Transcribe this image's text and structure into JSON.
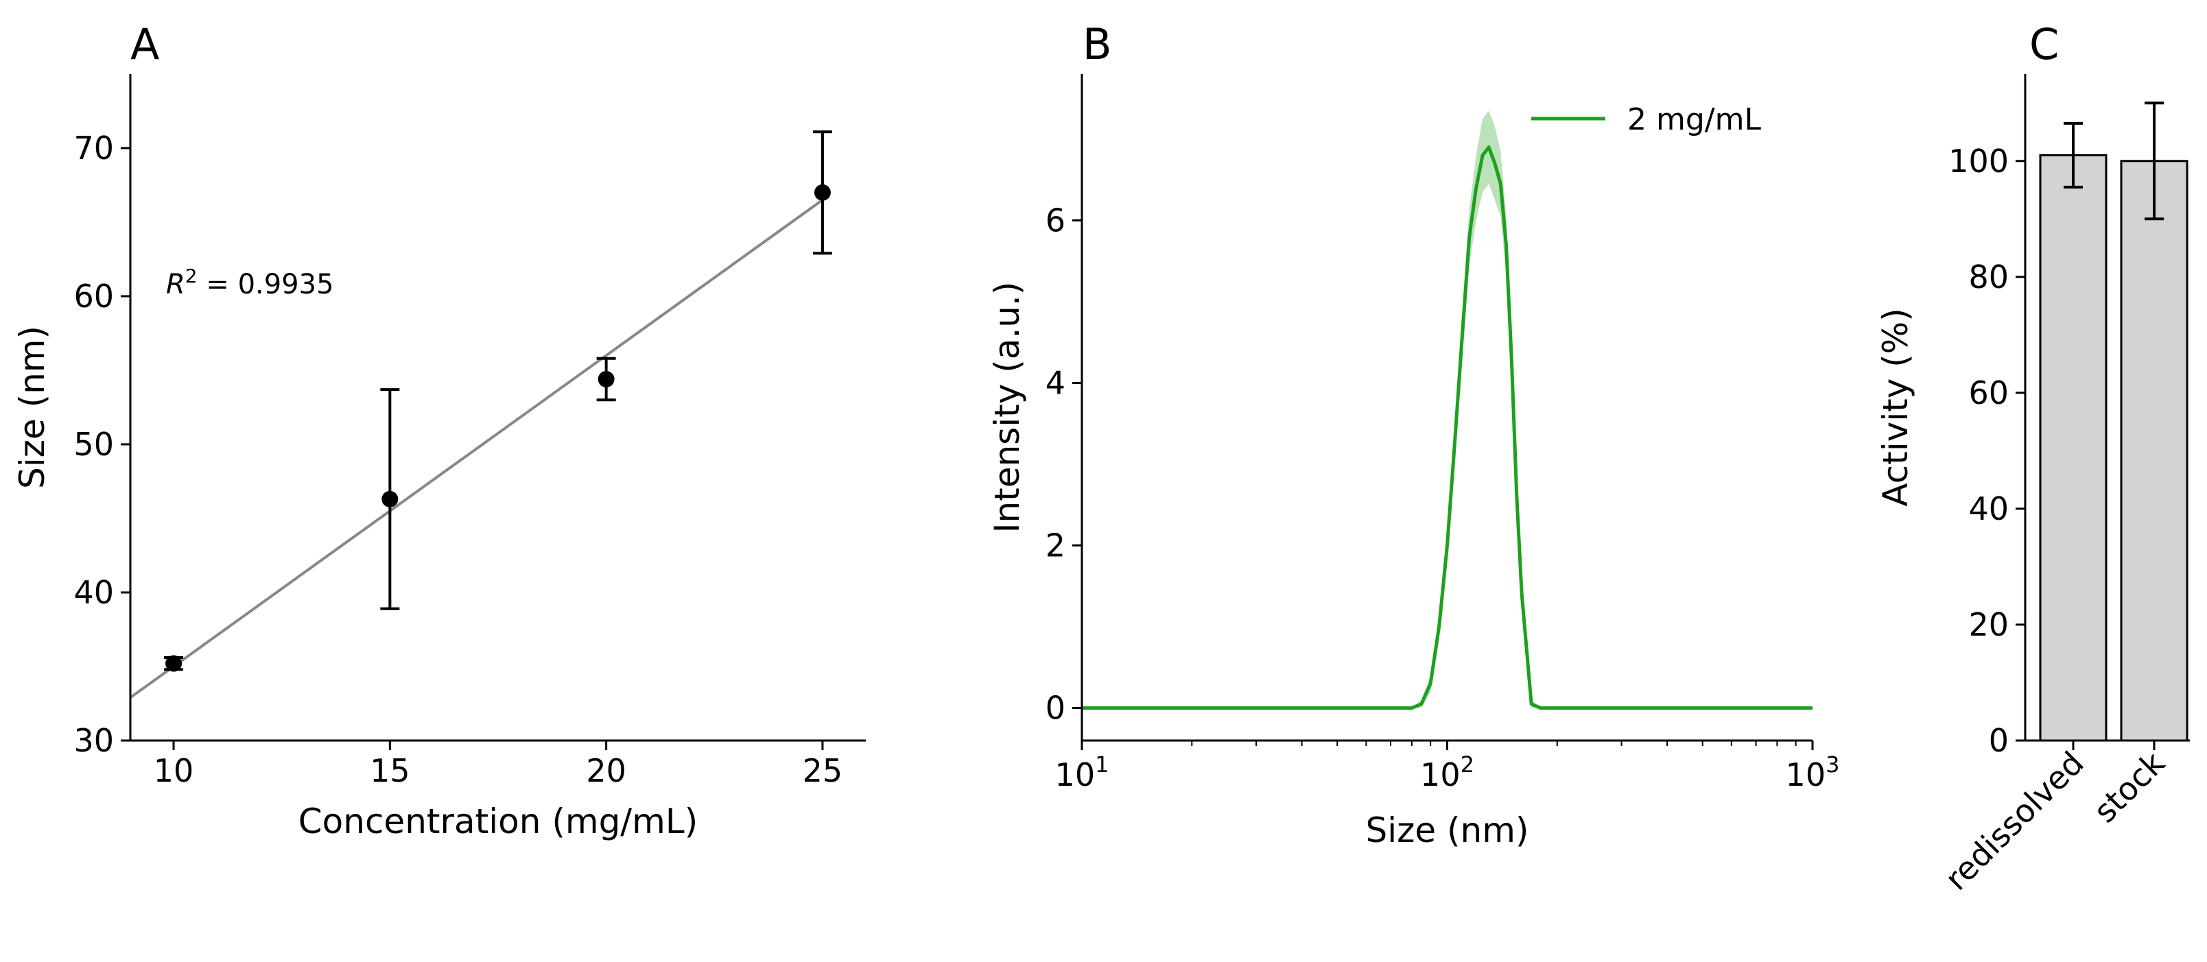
{
  "chart_data": [
    {
      "panel": "A",
      "type": "scatter",
      "xlabel": "Concentration (mg/mL)",
      "ylabel": "Size (nm)",
      "xlim": [
        9,
        26
      ],
      "ylim": [
        30,
        75
      ],
      "xticks": [
        10,
        15,
        20,
        25
      ],
      "yticks": [
        30,
        40,
        50,
        60,
        70
      ],
      "x": [
        10,
        15,
        20,
        25
      ],
      "y": [
        35.2,
        46.3,
        54.4,
        67.0
      ],
      "yerr": [
        0.4,
        7.4,
        1.4,
        4.1
      ],
      "marker_color": "#000000",
      "fit_line": {
        "slope": 2.1,
        "intercept": 14.0,
        "color": "#888888"
      },
      "annotation": {
        "prefix": "R",
        "superscript": "2",
        "text": " = 0.9935"
      }
    },
    {
      "panel": "B",
      "type": "line",
      "xscale": "log",
      "xlabel": "Size (nm)",
      "ylabel": "Intensity (a.u.)",
      "xlim": [
        10,
        1000
      ],
      "ylim": [
        -0.4,
        7.8
      ],
      "xticks": [
        {
          "base": "10",
          "exp": "1",
          "value": 10
        },
        {
          "base": "10",
          "exp": "2",
          "value": 100
        },
        {
          "base": "10",
          "exp": "3",
          "value": 1000
        }
      ],
      "yticks": [
        0,
        2,
        4,
        6
      ],
      "series": [
        {
          "name": "2 mg/mL",
          "color": "#1ea01e",
          "x": [
            10,
            20,
            40,
            60,
            80,
            85,
            90,
            95,
            100,
            105,
            110,
            115,
            120,
            125,
            130,
            135,
            140,
            145,
            150,
            155,
            160,
            170,
            180,
            200,
            400,
            1000
          ],
          "y": [
            0,
            0,
            0,
            0,
            0,
            0.05,
            0.3,
            1.0,
            2.0,
            3.3,
            4.6,
            5.8,
            6.4,
            6.8,
            6.9,
            6.7,
            6.45,
            5.7,
            4.3,
            2.6,
            1.4,
            0.05,
            0,
            0,
            0,
            0
          ],
          "band": [
            0,
            0,
            0,
            0,
            0,
            0.05,
            0.1,
            0.15,
            0.2,
            0.25,
            0.3,
            0.35,
            0.4,
            0.45,
            0.45,
            0.45,
            0.4,
            0.35,
            0.3,
            0.2,
            0.15,
            0.05,
            0,
            0,
            0,
            0
          ]
        }
      ]
    },
    {
      "panel": "C",
      "type": "bar",
      "ylabel": "Activity (%)",
      "ylim": [
        0,
        115
      ],
      "yticks": [
        0,
        20,
        40,
        60,
        80,
        100
      ],
      "categories": [
        "redissolved",
        "stock"
      ],
      "values": [
        101,
        100
      ],
      "errors": [
        5.5,
        10
      ],
      "bar_color": "#d3d3d3"
    }
  ]
}
